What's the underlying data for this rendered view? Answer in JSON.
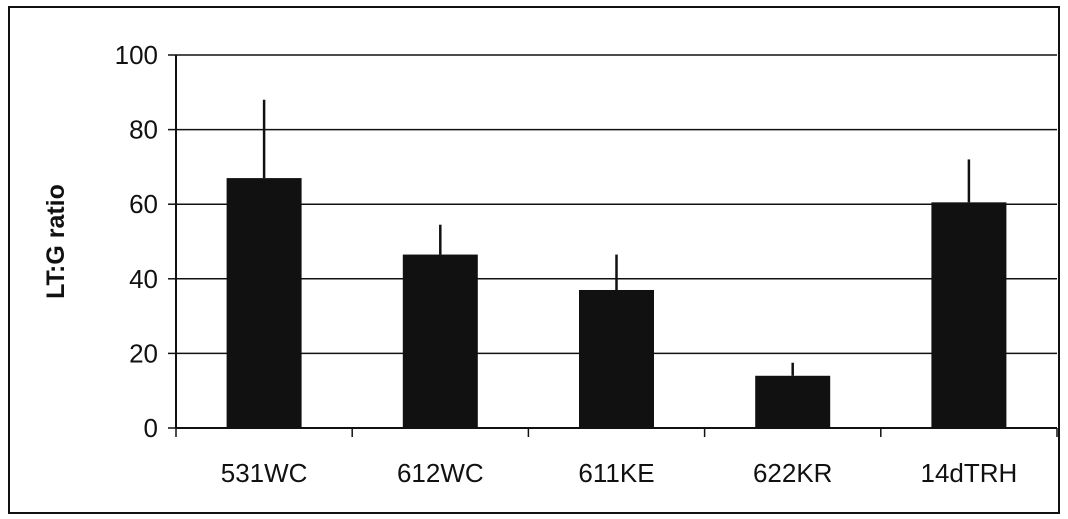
{
  "chart_data": {
    "type": "bar",
    "title": "",
    "xlabel": "",
    "ylabel": "LT:G ratio",
    "categories": [
      "531WC",
      "612WC",
      "611KE",
      "622KR",
      "14dTRH"
    ],
    "series": [
      {
        "values": [
          67,
          46.5,
          37,
          14,
          60.5
        ],
        "error": [
          21,
          8,
          9.5,
          3.5,
          11.5
        ]
      }
    ],
    "ylim": [
      0,
      100
    ],
    "yticks": [
      0,
      20,
      40,
      60,
      80,
      100
    ],
    "grid": true,
    "legend": "none",
    "colors": {
      "bar": "#111111",
      "grid": "#111111",
      "background": "#ffffff"
    }
  }
}
